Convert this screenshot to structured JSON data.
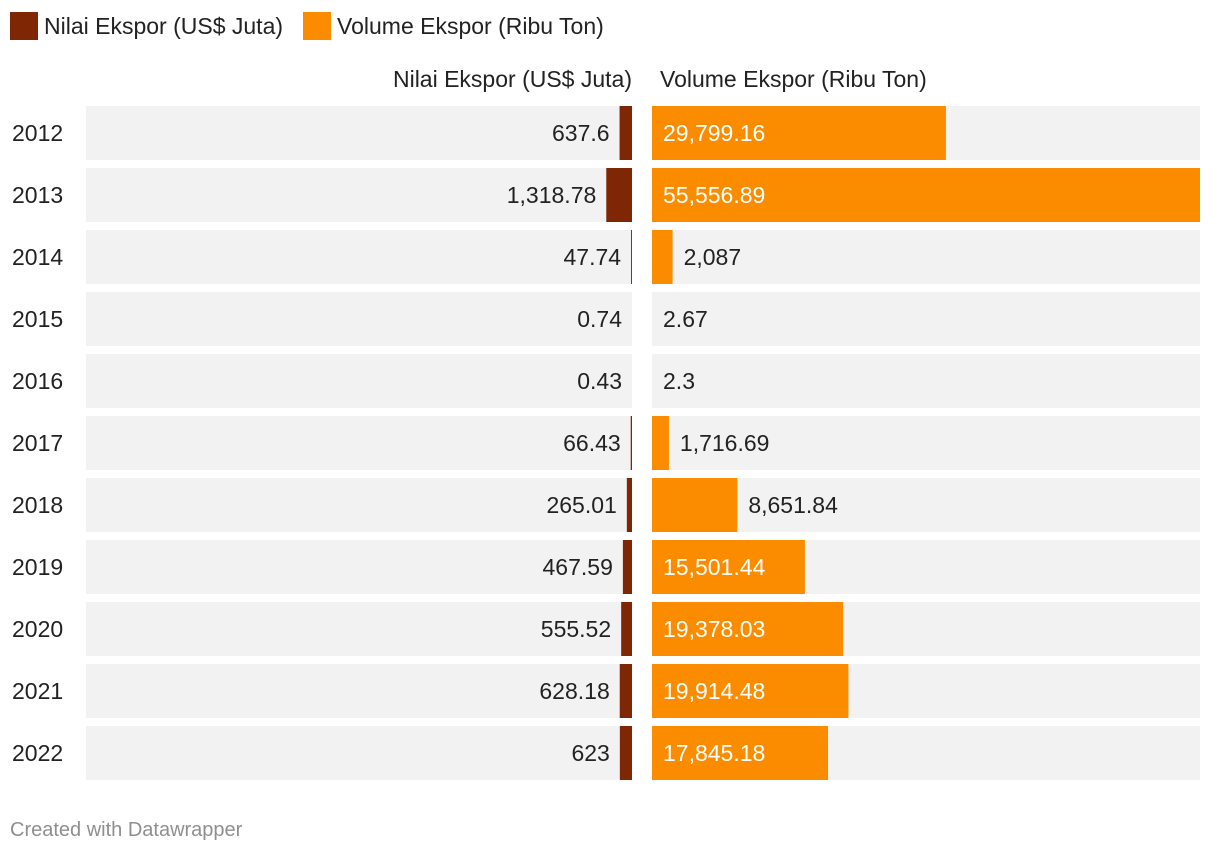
{
  "chart_data": {
    "type": "bar",
    "title": "",
    "legend_position": "top-left",
    "categories": [
      "2012",
      "2013",
      "2014",
      "2015",
      "2016",
      "2017",
      "2018",
      "2019",
      "2020",
      "2021",
      "2022"
    ],
    "series": [
      {
        "name": "Nilai Ekspor (US$ Juta)",
        "color": "#7f2704",
        "values": [
          637.6,
          1318.78,
          47.74,
          0.74,
          0.43,
          66.43,
          265.01,
          467.59,
          555.52,
          628.18,
          623
        ],
        "labels": [
          "637.6",
          "1,318.78",
          "47.74",
          "0.74",
          "0.43",
          "66.43",
          "265.01",
          "467.59",
          "555.52",
          "628.18",
          "623"
        ],
        "range": [
          0,
          28000
        ]
      },
      {
        "name": "Volume Ekspor (Ribu Ton)",
        "color": "#fb8c00",
        "values": [
          29799.16,
          55556.89,
          2087,
          2.67,
          2.3,
          1716.69,
          8651.84,
          15501.44,
          19378.03,
          19914.48,
          17845.18
        ],
        "labels": [
          "29,799.16",
          "55,556.89",
          "2,087",
          "2.67",
          "2.3",
          "1,716.69",
          "8,651.84",
          "15,501.44",
          "19,378.03",
          "19,914.48",
          "17,845.18"
        ],
        "range": [
          0,
          55556.89
        ]
      }
    ],
    "background_color": "#f2f2f2"
  },
  "footer": {
    "credit": "Created with Datawrapper"
  }
}
